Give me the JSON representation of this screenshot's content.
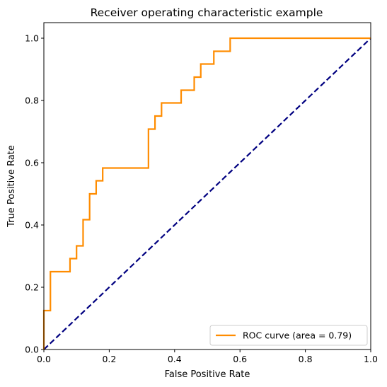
{
  "chart_data": {
    "type": "line",
    "title": "Receiver operating characteristic example",
    "xlabel": "False Positive Rate",
    "ylabel": "True Positive Rate",
    "xlim": [
      0.0,
      1.0
    ],
    "ylim": [
      0.0,
      1.05
    ],
    "x_ticks": [
      "0.0",
      "0.2",
      "0.4",
      "0.6",
      "0.8",
      "1.0"
    ],
    "y_ticks": [
      "0.0",
      "0.2",
      "0.4",
      "0.6",
      "0.8",
      "1.0"
    ],
    "grid": false,
    "legend_position": "lower-right",
    "series": [
      {
        "name": "ROC curve (area = 0.79)",
        "color": "#ff8c00",
        "line_style": "solid",
        "x": [
          0.0,
          0.0,
          0.02,
          0.02,
          0.08,
          0.08,
          0.1,
          0.1,
          0.12,
          0.12,
          0.14,
          0.14,
          0.16,
          0.16,
          0.18,
          0.18,
          0.32,
          0.32,
          0.34,
          0.34,
          0.36,
          0.36,
          0.42,
          0.42,
          0.46,
          0.46,
          0.48,
          0.48,
          0.52,
          0.52,
          0.57,
          0.57,
          1.0
        ],
        "y": [
          0.0,
          0.125,
          0.125,
          0.25,
          0.25,
          0.292,
          0.292,
          0.333,
          0.333,
          0.417,
          0.417,
          0.5,
          0.5,
          0.542,
          0.542,
          0.583,
          0.583,
          0.708,
          0.708,
          0.75,
          0.75,
          0.792,
          0.792,
          0.833,
          0.833,
          0.875,
          0.875,
          0.917,
          0.917,
          0.958,
          0.958,
          1.0,
          1.0
        ]
      },
      {
        "name": "",
        "color": "#000080",
        "line_style": "dashed",
        "x": [
          0.0,
          1.0
        ],
        "y": [
          0.0,
          1.0
        ]
      }
    ]
  }
}
